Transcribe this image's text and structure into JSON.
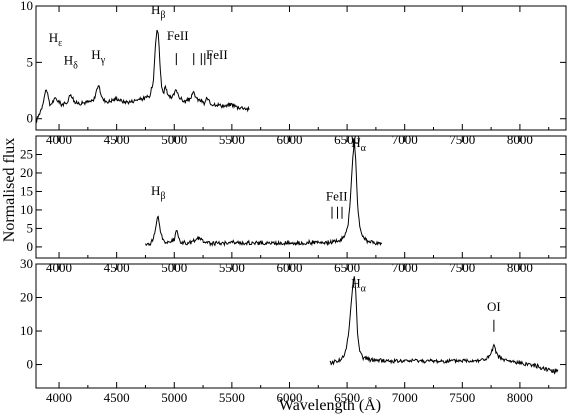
{
  "chart_data": [
    {
      "type": "line",
      "xlim": [
        3800,
        8400
      ],
      "ylim": [
        -1,
        10
      ],
      "xticks": [
        4000,
        4500,
        5000,
        5500,
        6000,
        6500,
        7000,
        7500,
        8000
      ],
      "yticks": [
        0,
        5,
        10
      ],
      "series": [
        {
          "x": [
            3800,
            3850,
            3889,
            3920,
            3970,
            4020,
            4060,
            4102,
            4140,
            4200,
            4260,
            4300,
            4340,
            4380,
            4430,
            4500,
            4560,
            4620,
            4680,
            4740,
            4790,
            4820,
            4835,
            4850,
            4861,
            4875,
            4890,
            4910,
            4923,
            4945,
            4980,
            5018,
            5050,
            5090,
            5130,
            5169,
            5200,
            5235,
            5260,
            5280,
            5317,
            5350,
            5400,
            5450,
            5500,
            5550,
            5600,
            5650
          ],
          "y": [
            -0.3,
            1.0,
            2.7,
            1.2,
            1.8,
            1.3,
            1.3,
            2.2,
            1.4,
            1.4,
            1.5,
            1.6,
            3.0,
            1.7,
            1.5,
            1.8,
            1.5,
            1.5,
            1.7,
            1.8,
            2.0,
            3.5,
            6.5,
            8.0,
            7.6,
            5.0,
            2.8,
            2.3,
            3.0,
            2.0,
            1.8,
            2.6,
            1.8,
            1.5,
            1.7,
            2.3,
            1.7,
            1.6,
            1.3,
            1.8,
            1.3,
            1.3,
            1.2,
            1.1,
            1.3,
            1.0,
            1.0,
            0.8
          ]
        }
      ],
      "annotations": [
        {
          "label": "H",
          "sub": "ε",
          "x": 3970,
          "y": 6.8
        },
        {
          "label": "H",
          "sub": "δ",
          "x": 4102,
          "y": 4.8
        },
        {
          "label": "H",
          "sub": "γ",
          "x": 4340,
          "y": 5.3
        },
        {
          "label": "H",
          "sub": "β",
          "x": 4861,
          "y": 9.3
        },
        {
          "label": "FeII",
          "sub": "",
          "x": 5030,
          "y": 7.0
        },
        {
          "label": "FeII",
          "sub": "",
          "x": 5370,
          "y": 5.3
        }
      ],
      "marker_lines": [
        5018,
        5169,
        5235,
        5265,
        5317
      ]
    },
    {
      "type": "line",
      "xlim": [
        3800,
        8400
      ],
      "ylim": [
        -3,
        30
      ],
      "xticks": [
        4000,
        4500,
        5000,
        5500,
        6000,
        6500,
        7000,
        7500,
        8000
      ],
      "yticks": [
        0,
        5,
        10,
        15,
        20,
        25
      ],
      "series": [
        {
          "x": [
            4750,
            4800,
            4830,
            4850,
            4861,
            4880,
            4910,
            4950,
            5000,
            5018,
            5050,
            5100,
            5150,
            5200,
            5300,
            5400,
            5500,
            5600,
            5700,
            5800,
            5900,
            6000,
            6100,
            6200,
            6300,
            6400,
            6450,
            6480,
            6510,
            6530,
            6550,
            6563,
            6575,
            6590,
            6610,
            6640,
            6680,
            6720,
            6760,
            6800
          ],
          "y": [
            0.5,
            1.0,
            3.5,
            7.5,
            8.0,
            4.0,
            1.5,
            1.0,
            2.0,
            4.5,
            1.5,
            1.0,
            1.2,
            2.5,
            1.0,
            1.0,
            1.2,
            1.0,
            1.1,
            1.0,
            1.0,
            1.1,
            1.0,
            1.2,
            1.0,
            1.5,
            2.0,
            3.0,
            6.0,
            14.0,
            24.0,
            29.0,
            24.0,
            12.0,
            5.0,
            2.5,
            1.5,
            1.2,
            1.0,
            0.8
          ]
        }
      ],
      "annotations": [
        {
          "label": "H",
          "sub": "β",
          "x": 4861,
          "y": 14.0
        },
        {
          "label": "H",
          "sub": "α",
          "x": 6600,
          "y": 27.0
        },
        {
          "label": "FeII",
          "sub": "",
          "x": 6410,
          "y": 12.5
        }
      ],
      "marker_lines": [
        6369,
        6417,
        6456
      ]
    },
    {
      "type": "line",
      "xlim": [
        3800,
        8400
      ],
      "ylim": [
        -7,
        30
      ],
      "xticks": [
        4000,
        4500,
        5000,
        5500,
        6000,
        6500,
        7000,
        7500,
        8000
      ],
      "yticks": [
        0,
        10,
        20,
        30
      ],
      "series": [
        {
          "x": [
            6350,
            6400,
            6450,
            6480,
            6510,
            6530,
            6550,
            6563,
            6575,
            6590,
            6610,
            6640,
            6700,
            6800,
            6900,
            7000,
            7100,
            7200,
            7300,
            7400,
            7500,
            7600,
            7700,
            7740,
            7774,
            7810,
            7850,
            7900,
            8000,
            8100,
            8200,
            8300,
            8330
          ],
          "y": [
            0.5,
            1.0,
            1.5,
            3.0,
            8.0,
            16.0,
            24.0,
            26.5,
            22.0,
            10.0,
            4.0,
            2.0,
            1.5,
            1.2,
            1.0,
            1.0,
            1.2,
            1.0,
            1.0,
            1.0,
            1.2,
            1.2,
            1.5,
            2.5,
            5.5,
            2.5,
            1.5,
            1.0,
            0.5,
            0.0,
            -1.0,
            -2.0,
            -1.5
          ]
        }
      ],
      "annotations": [
        {
          "label": "H",
          "sub": "α",
          "x": 6600,
          "y": 23.0
        },
        {
          "label": "OI",
          "sub": "",
          "x": 7774,
          "y": 16.0
        }
      ],
      "marker_lines": [
        7774
      ]
    }
  ],
  "ylabel": "Normalised flux",
  "xlabel": "Wavelength (Å)"
}
